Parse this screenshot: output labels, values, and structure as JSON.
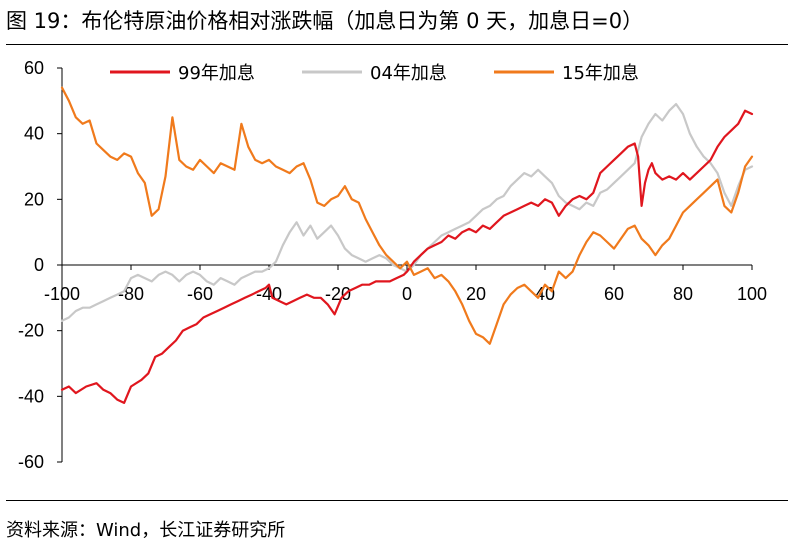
{
  "figure_title": "图 19：布伦特原油价格相对涨跌幅（加息日为第 0 天，加息日=0）",
  "source": "资料来源：Wind，长江证券研究所",
  "chart_data": {
    "type": "line",
    "xlim": [
      -100,
      100
    ],
    "ylim": [
      -60,
      60
    ],
    "x_ticks": [
      -100,
      -80,
      -60,
      -40,
      -20,
      0,
      20,
      40,
      60,
      80,
      100
    ],
    "y_ticks": [
      60,
      40,
      20,
      0,
      -20,
      -40,
      -60
    ],
    "grid": false,
    "legend_position": "top",
    "series": [
      {
        "name": "99年加息",
        "color": "#e0161e",
        "points": [
          [
            -100,
            -38
          ],
          [
            -98,
            -37
          ],
          [
            -96,
            -39
          ],
          [
            -93,
            -37
          ],
          [
            -90,
            -36
          ],
          [
            -88,
            -38
          ],
          [
            -86,
            -39
          ],
          [
            -84,
            -41
          ],
          [
            -82,
            -42
          ],
          [
            -80,
            -37
          ],
          [
            -77,
            -35
          ],
          [
            -75,
            -33
          ],
          [
            -73,
            -28
          ],
          [
            -71,
            -27
          ],
          [
            -69,
            -25
          ],
          [
            -67,
            -23
          ],
          [
            -65,
            -20
          ],
          [
            -63,
            -19
          ],
          [
            -61,
            -18
          ],
          [
            -59,
            -16
          ],
          [
            -57,
            -15
          ],
          [
            -55,
            -14
          ],
          [
            -53,
            -13
          ],
          [
            -51,
            -12
          ],
          [
            -49,
            -11
          ],
          [
            -47,
            -10
          ],
          [
            -45,
            -9
          ],
          [
            -43,
            -8
          ],
          [
            -41,
            -7
          ],
          [
            -40,
            -6
          ],
          [
            -39,
            -10
          ],
          [
            -37,
            -11
          ],
          [
            -35,
            -12
          ],
          [
            -33,
            -11
          ],
          [
            -31,
            -10
          ],
          [
            -29,
            -9
          ],
          [
            -27,
            -10
          ],
          [
            -25,
            -10
          ],
          [
            -23,
            -12
          ],
          [
            -21,
            -15
          ],
          [
            -19,
            -10
          ],
          [
            -17,
            -8
          ],
          [
            -15,
            -7
          ],
          [
            -13,
            -6
          ],
          [
            -11,
            -6
          ],
          [
            -9,
            -5
          ],
          [
            -7,
            -5
          ],
          [
            -5,
            -5
          ],
          [
            -3,
            -4
          ],
          [
            -1,
            -3
          ],
          [
            0,
            -2
          ],
          [
            2,
            1
          ],
          [
            4,
            3
          ],
          [
            6,
            5
          ],
          [
            8,
            6
          ],
          [
            10,
            7
          ],
          [
            12,
            9
          ],
          [
            14,
            8
          ],
          [
            16,
            10
          ],
          [
            18,
            11
          ],
          [
            20,
            10
          ],
          [
            22,
            12
          ],
          [
            24,
            11
          ],
          [
            26,
            13
          ],
          [
            28,
            15
          ],
          [
            30,
            16
          ],
          [
            32,
            17
          ],
          [
            34,
            18
          ],
          [
            36,
            19
          ],
          [
            38,
            18
          ],
          [
            40,
            20
          ],
          [
            42,
            19
          ],
          [
            44,
            15
          ],
          [
            46,
            18
          ],
          [
            48,
            20
          ],
          [
            50,
            21
          ],
          [
            52,
            20
          ],
          [
            54,
            22
          ],
          [
            56,
            28
          ],
          [
            58,
            30
          ],
          [
            60,
            32
          ],
          [
            62,
            34
          ],
          [
            64,
            36
          ],
          [
            66,
            37
          ],
          [
            67,
            33
          ],
          [
            68,
            18
          ],
          [
            69,
            25
          ],
          [
            70,
            29
          ],
          [
            71,
            31
          ],
          [
            72,
            28
          ],
          [
            73,
            27
          ],
          [
            74,
            26
          ],
          [
            76,
            27
          ],
          [
            78,
            26
          ],
          [
            80,
            28
          ],
          [
            82,
            26
          ],
          [
            84,
            28
          ],
          [
            86,
            30
          ],
          [
            88,
            32
          ],
          [
            90,
            36
          ],
          [
            92,
            39
          ],
          [
            94,
            41
          ],
          [
            96,
            43
          ],
          [
            98,
            47
          ],
          [
            100,
            46
          ]
        ]
      },
      {
        "name": "04年加息",
        "color": "#c8c8c8",
        "points": [
          [
            -100,
            -17
          ],
          [
            -98,
            -16
          ],
          [
            -96,
            -14
          ],
          [
            -94,
            -13
          ],
          [
            -92,
            -13
          ],
          [
            -90,
            -12
          ],
          [
            -88,
            -11
          ],
          [
            -86,
            -10
          ],
          [
            -84,
            -9
          ],
          [
            -82,
            -8
          ],
          [
            -80,
            -4
          ],
          [
            -78,
            -3
          ],
          [
            -76,
            -4
          ],
          [
            -74,
            -5
          ],
          [
            -72,
            -3
          ],
          [
            -70,
            -2
          ],
          [
            -68,
            -3
          ],
          [
            -66,
            -5
          ],
          [
            -64,
            -3
          ],
          [
            -62,
            -2
          ],
          [
            -60,
            -3
          ],
          [
            -58,
            -5
          ],
          [
            -56,
            -6
          ],
          [
            -54,
            -4
          ],
          [
            -52,
            -5
          ],
          [
            -50,
            -6
          ],
          [
            -48,
            -4
          ],
          [
            -46,
            -3
          ],
          [
            -44,
            -2
          ],
          [
            -42,
            -2
          ],
          [
            -40,
            -1
          ],
          [
            -38,
            1
          ],
          [
            -36,
            6
          ],
          [
            -34,
            10
          ],
          [
            -32,
            13
          ],
          [
            -30,
            9
          ],
          [
            -28,
            12
          ],
          [
            -26,
            8
          ],
          [
            -24,
            10
          ],
          [
            -22,
            12
          ],
          [
            -20,
            9
          ],
          [
            -18,
            5
          ],
          [
            -16,
            3
          ],
          [
            -14,
            2
          ],
          [
            -12,
            1
          ],
          [
            -10,
            2
          ],
          [
            -8,
            3
          ],
          [
            -6,
            2
          ],
          [
            -4,
            0
          ],
          [
            -2,
            -1
          ],
          [
            0,
            -2
          ],
          [
            2,
            0
          ],
          [
            4,
            3
          ],
          [
            6,
            5
          ],
          [
            8,
            7
          ],
          [
            10,
            9
          ],
          [
            12,
            10
          ],
          [
            14,
            11
          ],
          [
            16,
            12
          ],
          [
            18,
            13
          ],
          [
            20,
            15
          ],
          [
            22,
            17
          ],
          [
            24,
            18
          ],
          [
            26,
            20
          ],
          [
            28,
            21
          ],
          [
            30,
            24
          ],
          [
            32,
            26
          ],
          [
            34,
            28
          ],
          [
            36,
            27
          ],
          [
            38,
            29
          ],
          [
            40,
            27
          ],
          [
            42,
            25
          ],
          [
            44,
            21
          ],
          [
            46,
            19
          ],
          [
            48,
            18
          ],
          [
            50,
            17
          ],
          [
            52,
            19
          ],
          [
            54,
            18
          ],
          [
            56,
            22
          ],
          [
            58,
            23
          ],
          [
            60,
            25
          ],
          [
            62,
            27
          ],
          [
            64,
            29
          ],
          [
            66,
            31
          ],
          [
            68,
            39
          ],
          [
            70,
            43
          ],
          [
            72,
            46
          ],
          [
            74,
            44
          ],
          [
            76,
            47
          ],
          [
            78,
            49
          ],
          [
            80,
            46
          ],
          [
            82,
            40
          ],
          [
            84,
            36
          ],
          [
            86,
            33
          ],
          [
            88,
            31
          ],
          [
            90,
            28
          ],
          [
            92,
            22
          ],
          [
            94,
            18
          ],
          [
            96,
            24
          ],
          [
            98,
            29
          ],
          [
            100,
            30
          ]
        ]
      },
      {
        "name": "15年加息",
        "color": "#f07a1c",
        "points": [
          [
            -100,
            54
          ],
          [
            -98,
            50
          ],
          [
            -96,
            45
          ],
          [
            -94,
            43
          ],
          [
            -92,
            44
          ],
          [
            -90,
            37
          ],
          [
            -88,
            35
          ],
          [
            -86,
            33
          ],
          [
            -84,
            32
          ],
          [
            -82,
            34
          ],
          [
            -80,
            33
          ],
          [
            -78,
            28
          ],
          [
            -76,
            25
          ],
          [
            -74,
            15
          ],
          [
            -72,
            17
          ],
          [
            -70,
            27
          ],
          [
            -68,
            45
          ],
          [
            -66,
            32
          ],
          [
            -64,
            30
          ],
          [
            -62,
            29
          ],
          [
            -60,
            32
          ],
          [
            -58,
            30
          ],
          [
            -56,
            28
          ],
          [
            -54,
            31
          ],
          [
            -52,
            30
          ],
          [
            -50,
            29
          ],
          [
            -48,
            43
          ],
          [
            -46,
            36
          ],
          [
            -44,
            32
          ],
          [
            -42,
            31
          ],
          [
            -40,
            32
          ],
          [
            -38,
            30
          ],
          [
            -36,
            29
          ],
          [
            -34,
            28
          ],
          [
            -32,
            30
          ],
          [
            -30,
            31
          ],
          [
            -28,
            26
          ],
          [
            -26,
            19
          ],
          [
            -24,
            18
          ],
          [
            -22,
            20
          ],
          [
            -20,
            21
          ],
          [
            -18,
            24
          ],
          [
            -16,
            20
          ],
          [
            -14,
            19
          ],
          [
            -12,
            14
          ],
          [
            -10,
            10
          ],
          [
            -8,
            6
          ],
          [
            -6,
            3
          ],
          [
            -4,
            1
          ],
          [
            -2,
            -1
          ],
          [
            0,
            1
          ],
          [
            2,
            -3
          ],
          [
            4,
            -2
          ],
          [
            6,
            -1
          ],
          [
            8,
            -4
          ],
          [
            10,
            -3
          ],
          [
            12,
            -5
          ],
          [
            14,
            -8
          ],
          [
            16,
            -12
          ],
          [
            18,
            -17
          ],
          [
            20,
            -21
          ],
          [
            22,
            -22
          ],
          [
            24,
            -24
          ],
          [
            26,
            -18
          ],
          [
            28,
            -12
          ],
          [
            30,
            -9
          ],
          [
            32,
            -7
          ],
          [
            34,
            -6
          ],
          [
            36,
            -8
          ],
          [
            38,
            -10
          ],
          [
            40,
            -6
          ],
          [
            42,
            -8
          ],
          [
            44,
            -2
          ],
          [
            46,
            -4
          ],
          [
            48,
            -2
          ],
          [
            50,
            3
          ],
          [
            52,
            7
          ],
          [
            54,
            10
          ],
          [
            56,
            9
          ],
          [
            58,
            7
          ],
          [
            60,
            5
          ],
          [
            62,
            8
          ],
          [
            64,
            11
          ],
          [
            66,
            12
          ],
          [
            68,
            8
          ],
          [
            70,
            6
          ],
          [
            72,
            3
          ],
          [
            74,
            6
          ],
          [
            76,
            8
          ],
          [
            78,
            12
          ],
          [
            80,
            16
          ],
          [
            82,
            18
          ],
          [
            84,
            20
          ],
          [
            86,
            22
          ],
          [
            88,
            24
          ],
          [
            90,
            26
          ],
          [
            92,
            18
          ],
          [
            94,
            16
          ],
          [
            96,
            22
          ],
          [
            98,
            30
          ],
          [
            100,
            33
          ]
        ]
      }
    ]
  }
}
